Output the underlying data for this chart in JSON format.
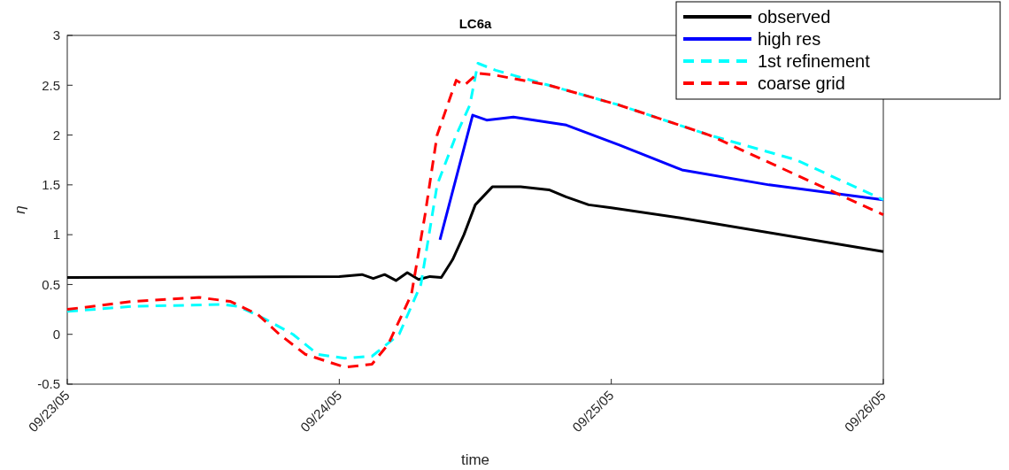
{
  "chart_data": {
    "type": "line",
    "title": "LC6a",
    "xlabel": "time",
    "ylabel": "η",
    "xlim": [
      "--09-23",
      "--09-26"
    ],
    "xticks": [
      {
        "value": "--09-23",
        "label": "09/23/05"
      },
      {
        "value": "--09-24",
        "label": "09/24/05"
      },
      {
        "value": "--09-25",
        "label": "09/25/05"
      },
      {
        "value": "--09-26",
        "label": "09/26/05"
      }
    ],
    "ylim": [
      -0.5,
      3
    ],
    "yticks": [
      -0.5,
      0,
      0.5,
      1,
      1.5,
      2,
      2.5,
      3
    ],
    "grid": false,
    "legend": "top right",
    "marker": "none",
    "series": [
      {
        "name": "observed",
        "color": "#000000",
        "line_style": "solid",
        "x": [
          "--09-23T00:00",
          "--09-24T00:00",
          "--09-24T02:00",
          "--09-24T03:00",
          "--09-24T04:00",
          "--09-24T05:00",
          "--09-24T06:00",
          "--09-24T07:00",
          "--09-24T08:00",
          "--09-24T09:00",
          "--09-24T10:00",
          "--09-24T11:00",
          "--09-24T12:00",
          "--09-24T13:30",
          "--09-24T16:00",
          "--09-24T18:30",
          "--09-24T20:00",
          "--09-24T22:00",
          "--09-25T00:00",
          "--09-25T06:00",
          "--09-26T00:00"
        ],
        "values": [
          0.57,
          0.58,
          0.6,
          0.56,
          0.6,
          0.54,
          0.62,
          0.55,
          0.58,
          0.57,
          0.75,
          1.0,
          1.3,
          1.48,
          1.48,
          1.45,
          1.38,
          1.3,
          1.27,
          1.17,
          0.83
        ]
      },
      {
        "name": "high res",
        "color": "#0000ff",
        "line_style": "solid",
        "x": [
          "--09-24T08:53",
          "--09-24T11:46",
          "--09-24T13:00",
          "--09-24T15:22",
          "--09-24T20:02",
          "--09-25T00:43",
          "--09-25T06:14",
          "--09-25T13:55",
          "--09-26T00:00"
        ],
        "values": [
          0.95,
          2.2,
          2.15,
          2.18,
          2.1,
          1.9,
          1.65,
          1.5,
          1.35
        ]
      },
      {
        "name": "1st refinement",
        "color": "#00ffff",
        "line_style": "dashed",
        "x": [
          "--09-23T00:00",
          "--09-23T05:46",
          "--09-23T13:41",
          "--09-23T15:07",
          "--09-23T17:31",
          "--09-23T19:55",
          "--09-23T22:05",
          "--09-24T00:29",
          "--09-24T02:53",
          "--09-24T05:17",
          "--09-24T07:12",
          "--09-24T08:38",
          "--09-24T10:19",
          "--09-24T11:31",
          "--09-24T12:14",
          "--09-24T13:48",
          "--09-24T18:29",
          "--09-25T00:43",
          "--09-25T08:38",
          "--09-25T16:19",
          "--09-26T00:00"
        ],
        "values": [
          0.23,
          0.28,
          0.3,
          0.28,
          0.15,
          0.0,
          -0.2,
          -0.24,
          -0.22,
          0.0,
          0.5,
          1.5,
          2.0,
          2.3,
          2.72,
          2.65,
          2.5,
          2.3,
          2.0,
          1.75,
          1.35
        ]
      },
      {
        "name": "coarse grid",
        "color": "#ff0000",
        "line_style": "dashed",
        "x": [
          "--09-23T00:00",
          "--09-23T05:46",
          "--09-23T11:38",
          "--09-23T14:24",
          "--09-23T16:48",
          "--09-23T18:43",
          "--09-23T21:00",
          "--09-24T00:29",
          "--09-24T02:53",
          "--09-24T04:19",
          "--09-24T06:22",
          "--09-24T07:34",
          "--09-24T08:38",
          "--09-24T10:19",
          "--09-24T11:02",
          "--09-24T12:14",
          "--09-24T13:48",
          "--09-24T18:29",
          "--09-25T00:43",
          "--09-25T08:38",
          "--09-25T16:19",
          "--09-26T00:00"
        ],
        "values": [
          0.25,
          0.33,
          0.37,
          0.33,
          0.2,
          0.0,
          -0.2,
          -0.33,
          -0.3,
          -0.1,
          0.4,
          1.2,
          2.0,
          2.55,
          2.5,
          2.62,
          2.6,
          2.5,
          2.3,
          2.0,
          1.6,
          1.2
        ]
      }
    ]
  }
}
